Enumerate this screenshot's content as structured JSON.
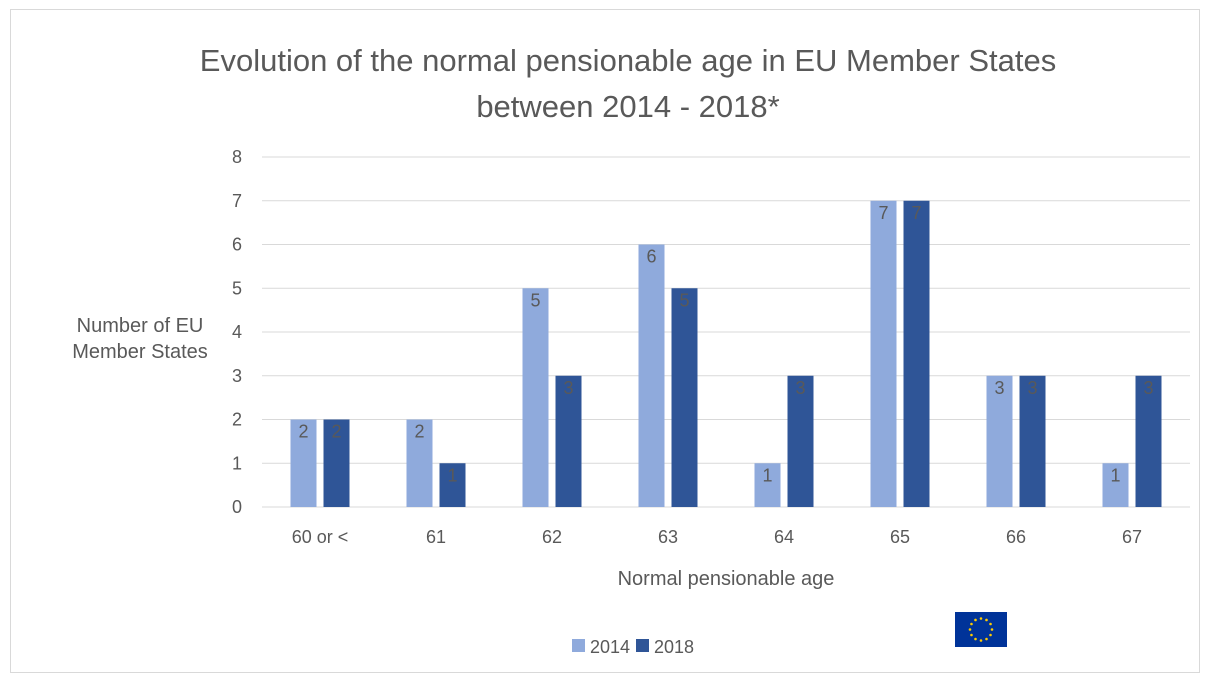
{
  "chart_data": {
    "type": "bar",
    "title_lines": [
      "Evolution of the normal pensionable age in EU Member States",
      "between 2014 - 2018*"
    ],
    "xlabel": "Normal pensionable age",
    "ylabel_lines": [
      "Number of EU",
      "Member States"
    ],
    "categories": [
      "60 or <",
      "61",
      "62",
      "63",
      "64",
      "65",
      "66",
      "67"
    ],
    "series": [
      {
        "name": "2014",
        "color": "#8faadc",
        "values": [
          2,
          2,
          5,
          6,
          1,
          7,
          3,
          1
        ]
      },
      {
        "name": "2018",
        "color": "#2f5597",
        "values": [
          2,
          1,
          3,
          5,
          3,
          7,
          3,
          3
        ]
      }
    ],
    "ylim": [
      0,
      8
    ],
    "yticks": [
      0,
      1,
      2,
      3,
      4,
      5,
      6,
      7,
      8
    ],
    "grid": true,
    "data_labels": true,
    "legend_position": "bottom"
  },
  "logo": {
    "name": "eu-flag-icon",
    "colors": {
      "background": "#003399",
      "stars": "#ffcc00"
    }
  }
}
